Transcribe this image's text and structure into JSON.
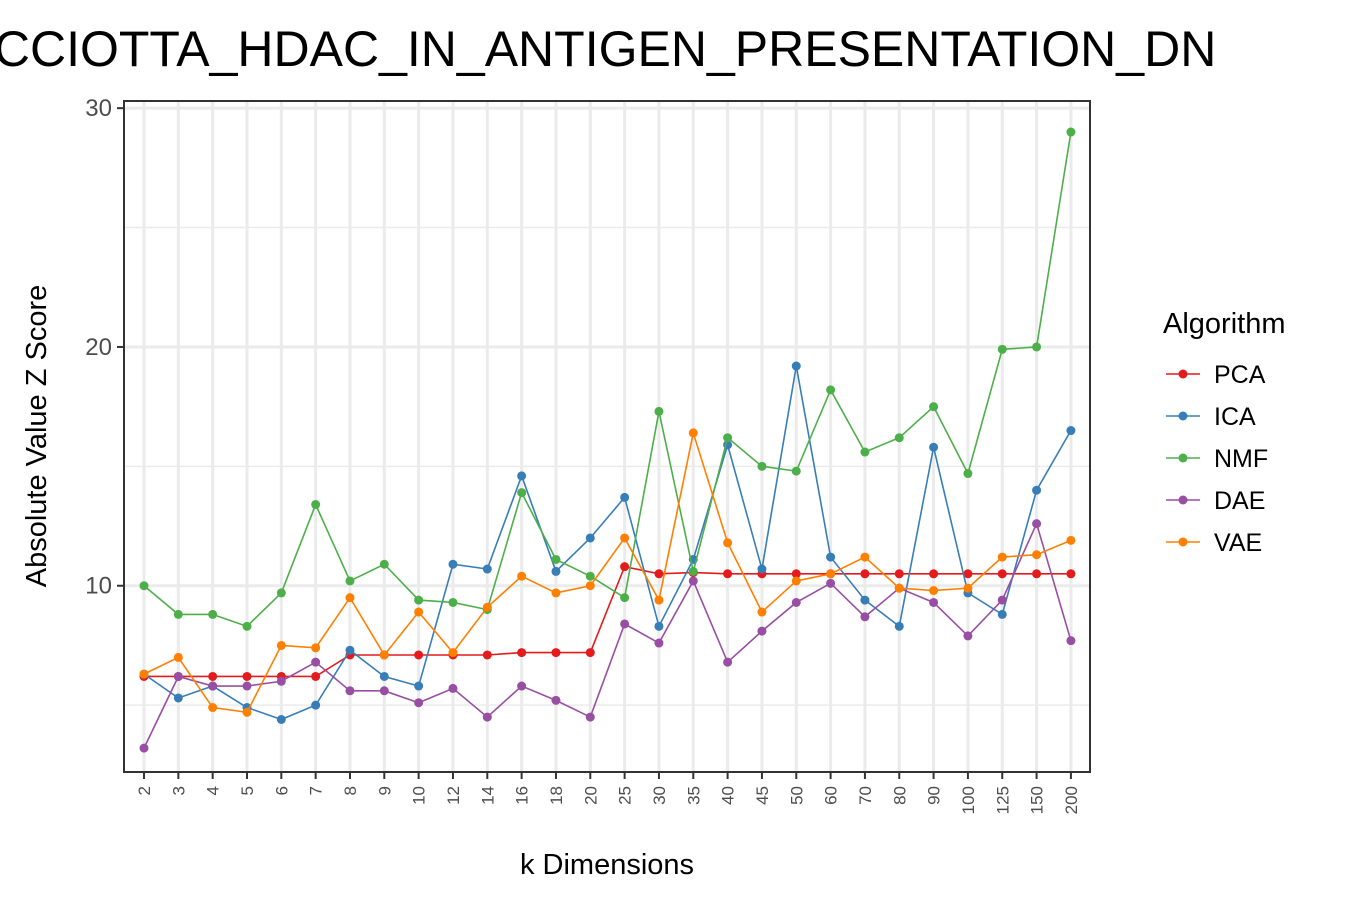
{
  "chart_data": {
    "type": "line",
    "title": "ICCIOTTA_HDAC_IN_ANTIGEN_PRESENTATION_DN",
    "xlabel": "k Dimensions",
    "ylabel": "Absolute Value Z Score",
    "categories": [
      "2",
      "3",
      "4",
      "5",
      "6",
      "7",
      "8",
      "9",
      "10",
      "12",
      "14",
      "16",
      "18",
      "20",
      "25",
      "30",
      "35",
      "40",
      "45",
      "50",
      "60",
      "70",
      "80",
      "90",
      "100",
      "125",
      "150",
      "200"
    ],
    "y_ticks": [
      "10",
      "20",
      "30"
    ],
    "ylim": [
      2.2,
      30.3
    ],
    "grid": true,
    "legend_title": "Algorithm",
    "legend_position": "right",
    "series": [
      {
        "name": "PCA",
        "color": "#e41a1c",
        "values": [
          6.2,
          6.2,
          6.2,
          6.2,
          6.2,
          6.2,
          7.1,
          7.1,
          7.1,
          7.1,
          7.1,
          7.2,
          7.2,
          7.2,
          10.8,
          10.5,
          10.55,
          10.5,
          10.5,
          10.5,
          10.5,
          10.5,
          10.5,
          10.5,
          10.5,
          10.5,
          10.5,
          10.5
        ]
      },
      {
        "name": "ICA",
        "color": "#377eb8",
        "values": [
          6.3,
          5.3,
          5.8,
          4.9,
          4.4,
          5.0,
          7.3,
          6.2,
          5.8,
          10.9,
          10.7,
          14.6,
          10.6,
          12.0,
          13.7,
          8.3,
          11.1,
          15.9,
          10.7,
          19.2,
          11.2,
          9.4,
          8.3,
          15.8,
          9.7,
          8.8,
          14.0,
          16.5
        ]
      },
      {
        "name": "NMF",
        "color": "#4daf4a",
        "values": [
          10.0,
          8.8,
          8.8,
          8.3,
          9.7,
          13.4,
          10.2,
          10.9,
          9.4,
          9.3,
          9.0,
          13.9,
          11.1,
          10.4,
          9.5,
          17.3,
          10.6,
          16.2,
          15.0,
          14.8,
          18.2,
          15.6,
          16.2,
          17.5,
          14.7,
          19.9,
          20.0,
          29.0
        ]
      },
      {
        "name": "DAE",
        "color": "#984ea3",
        "values": [
          3.2,
          6.2,
          5.8,
          5.8,
          6.0,
          6.8,
          5.6,
          5.6,
          5.1,
          5.7,
          4.5,
          5.8,
          5.2,
          4.5,
          8.4,
          7.6,
          10.2,
          6.8,
          8.1,
          9.3,
          10.1,
          8.7,
          9.9,
          9.3,
          7.9,
          9.4,
          12.6,
          7.7
        ]
      },
      {
        "name": "VAE",
        "color": "#ff7f00",
        "values": [
          6.3,
          7.0,
          4.9,
          4.7,
          7.5,
          7.4,
          9.5,
          7.1,
          8.9,
          7.2,
          9.1,
          10.4,
          9.7,
          10.0,
          12.0,
          9.4,
          16.4,
          11.8,
          8.9,
          10.2,
          10.5,
          11.2,
          9.9,
          9.8,
          9.9,
          11.2,
          11.3,
          11.9
        ]
      }
    ]
  }
}
